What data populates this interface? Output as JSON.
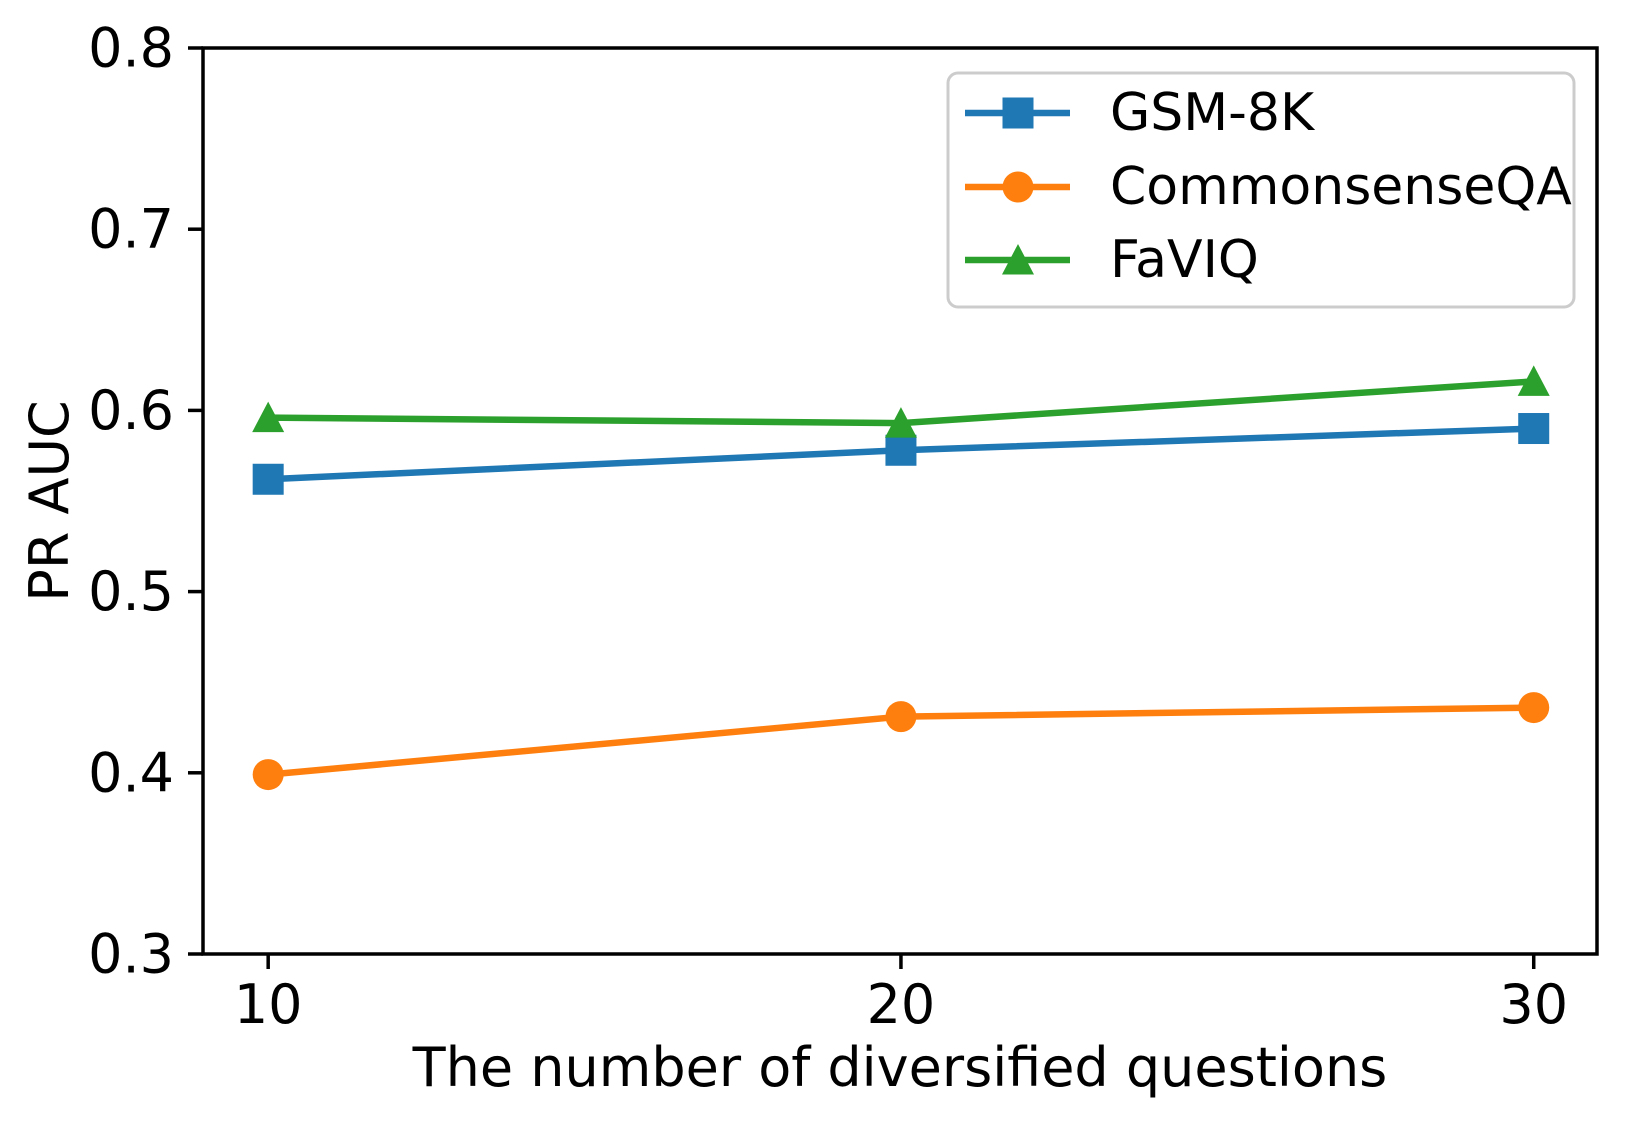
{
  "chart_data": {
    "type": "line",
    "title": "",
    "xlabel": "The number of diversified questions",
    "ylabel": "PR AUC",
    "x": [
      10,
      20,
      30
    ],
    "series": [
      {
        "name": "GSM-8K",
        "color": "#1f77b4",
        "marker": "square",
        "values": [
          0.562,
          0.578,
          0.59
        ]
      },
      {
        "name": "CommonsenseQA",
        "color": "#ff7f0e",
        "marker": "circle",
        "values": [
          0.399,
          0.431,
          0.436
        ]
      },
      {
        "name": "FaVIQ",
        "color": "#2ca02c",
        "marker": "triangle-up",
        "values": [
          0.596,
          0.593,
          0.616
        ]
      }
    ],
    "xticks": [
      10,
      20,
      30
    ],
    "yticks": [
      0.3,
      0.4,
      0.5,
      0.6,
      0.7,
      0.8
    ],
    "xtick_labels": [
      "10",
      "20",
      "30"
    ],
    "ytick_labels": [
      "0.3",
      "0.4",
      "0.5",
      "0.6",
      "0.7",
      "0.8"
    ],
    "xlim": [
      8.97,
      31.0
    ],
    "ylim": [
      0.3,
      0.8
    ],
    "grid": false,
    "legend": {
      "position": "upper right",
      "entries": [
        "GSM-8K",
        "CommonsenseQA",
        "FaVIQ"
      ]
    }
  },
  "colors": {
    "background": "#ffffff",
    "axis": "#000000",
    "text": "#000000",
    "legend_border": "#cccccc",
    "series_blue": "#1f77b4",
    "series_orange": "#ff7f0e",
    "series_green": "#2ca02c"
  }
}
